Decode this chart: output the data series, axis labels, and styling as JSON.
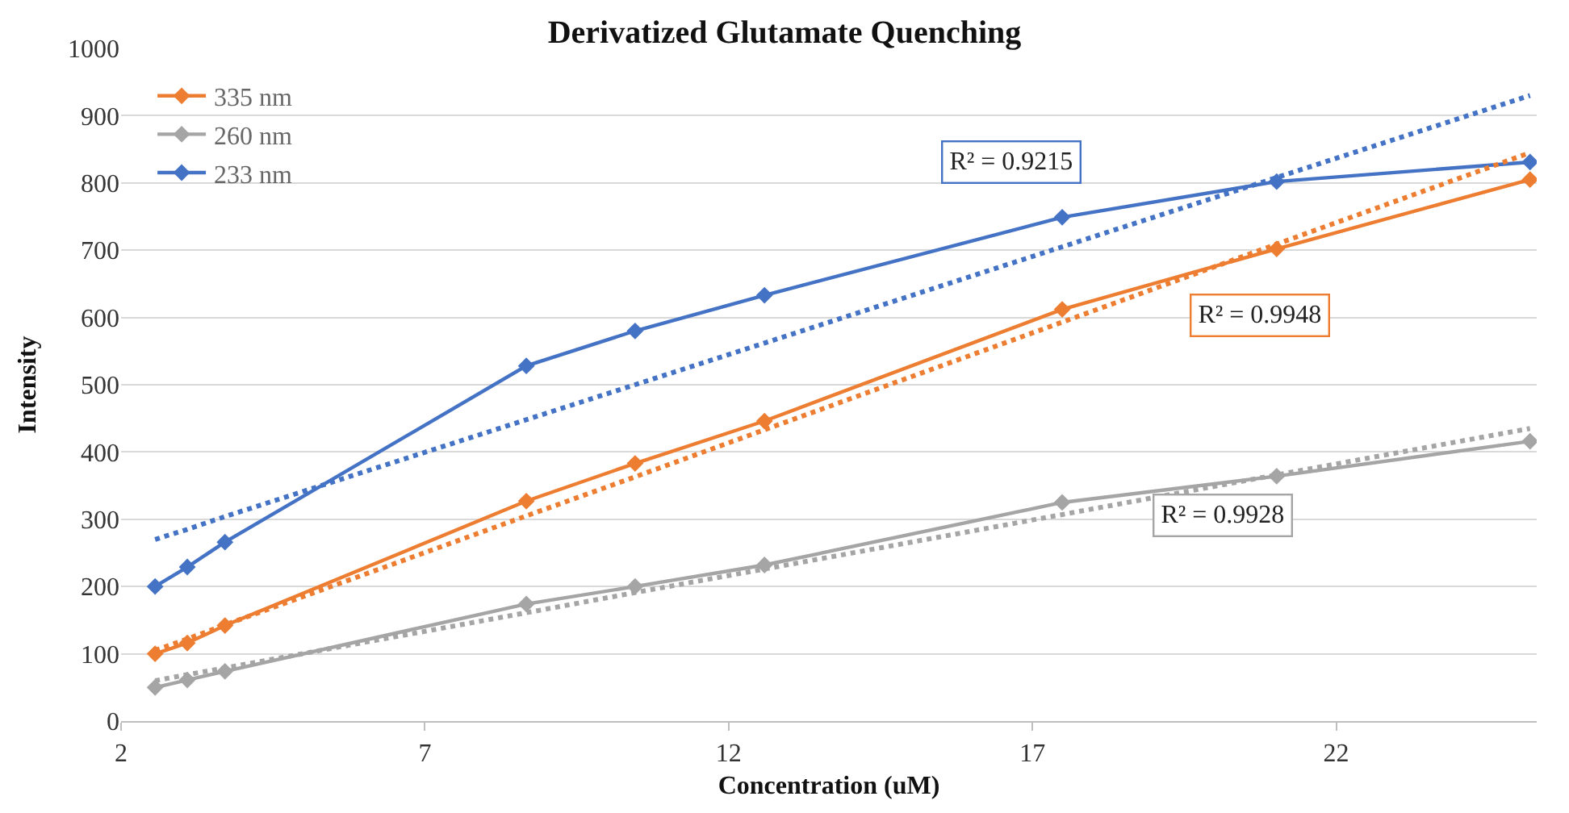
{
  "chart_data": {
    "type": "line",
    "title": "Derivatized Glutamate Quenching",
    "xlabel": "Concentration (uM)",
    "ylabel": "Intensity",
    "x": [
      2.56,
      3.09,
      3.71,
      8.67,
      10.46,
      12.59,
      17.49,
      21.02,
      25.19
    ],
    "series": [
      {
        "name": "335 nm",
        "color": "#ed7d31",
        "values": [
          100,
          116,
          142,
          327,
          383,
          446,
          612,
          702,
          805
        ]
      },
      {
        "name": "260 nm",
        "color": "#a5a5a5",
        "values": [
          50,
          61,
          74,
          174,
          200,
          232,
          325,
          364,
          416
        ]
      },
      {
        "name": "233 nm",
        "color": "#4472c4",
        "values": [
          200,
          229,
          266,
          528,
          580,
          633,
          749,
          802,
          831
        ]
      },
      {
        "color": "#4472c4",
        "values": [
          270,
          285,
          304,
          448,
          500,
          562,
          705,
          808,
          930
        ],
        "line_style": "dotted",
        "marker": "none"
      },
      {
        "color": "#ed7d31",
        "values": [
          105,
          122,
          143,
          305,
          363,
          433,
          593,
          709,
          845
        ],
        "line_style": "dotted",
        "marker": "none"
      },
      {
        "color": "#a5a5a5",
        "values": [
          60,
          69,
          79,
          161,
          191,
          226,
          307,
          366,
          435
        ],
        "line_style": "dotted",
        "marker": "none"
      }
    ],
    "annotations": [
      "R² = 0.9215",
      "R² = 0.9948",
      "R² = 0.9928"
    ],
    "xlim": [
      2,
      25.3
    ],
    "xticks": [
      2,
      7,
      12,
      17,
      22
    ],
    "ylim": [
      0,
      1000
    ],
    "yticks": [
      0,
      100,
      200,
      300,
      400,
      500,
      600,
      700,
      800,
      900,
      1000
    ],
    "grid": "y",
    "legend": "top left",
    "marker": "diamond",
    "line_style": "solid"
  }
}
